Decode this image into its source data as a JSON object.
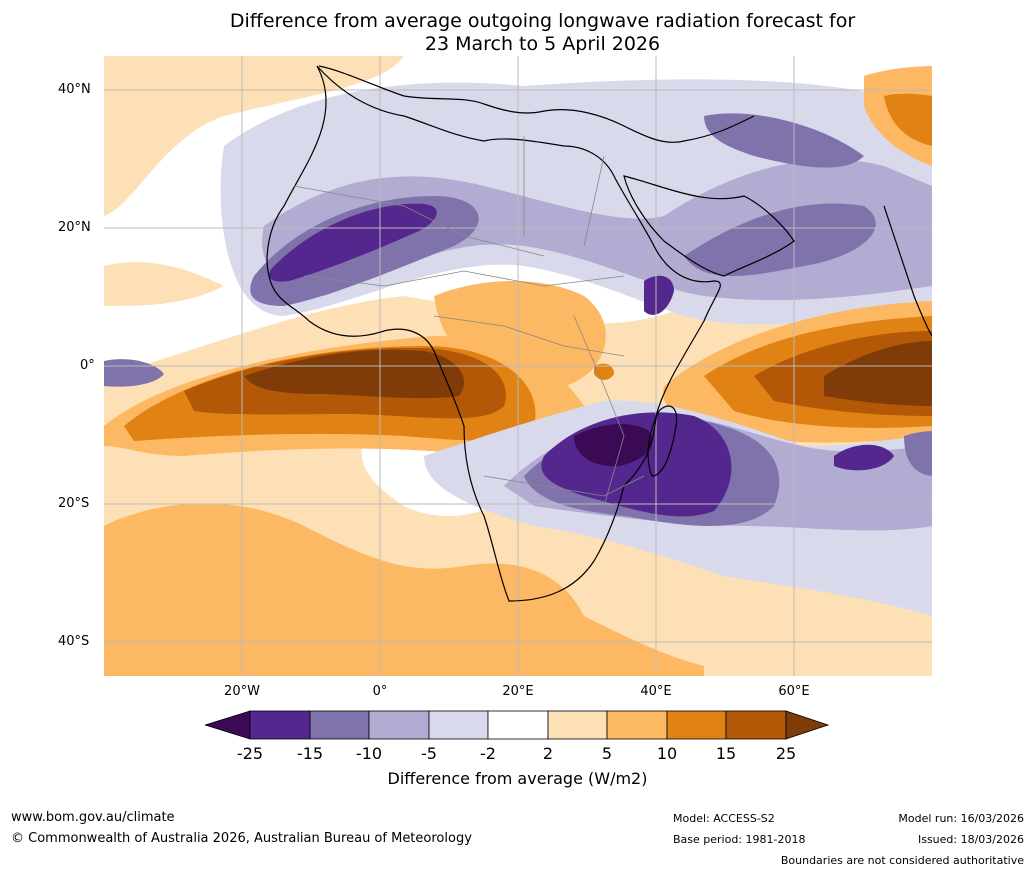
{
  "title_line1": "Difference from average outgoing longwave radiation forecast for",
  "title_line2": "23 March to 5 April 2026",
  "lat_labels": [
    "40°N",
    "20°N",
    "0°",
    "20°S",
    "40°S"
  ],
  "lon_labels": [
    "20°W",
    "0°",
    "20°E",
    "40°E",
    "60°E"
  ],
  "colorbar": {
    "ticks": [
      "-25",
      "-15",
      "-10",
      "-5",
      "-2",
      "2",
      "5",
      "10",
      "15",
      "25"
    ],
    "colors": [
      "#3a0a55",
      "#54278f",
      "#8073ac",
      "#b2abd2",
      "#d8daeb",
      "#ffffff",
      "#fee0b6",
      "#fdb863",
      "#e08214",
      "#b35806",
      "#7f3b08"
    ],
    "label": "Difference from average (W/m2)"
  },
  "footer": {
    "website": "www.bom.gov.au/climate",
    "copyright": "© Commonwealth of Australia 2026, Australian Bureau of Meteorology",
    "model": "Model: ACCESS-S2",
    "base_period": "Base period: 1981-2018",
    "model_run": "Model run: 16/03/2026",
    "issued": "Issued: 18/03/2026",
    "disclaimer": "Boundaries are not considered authoritative"
  }
}
